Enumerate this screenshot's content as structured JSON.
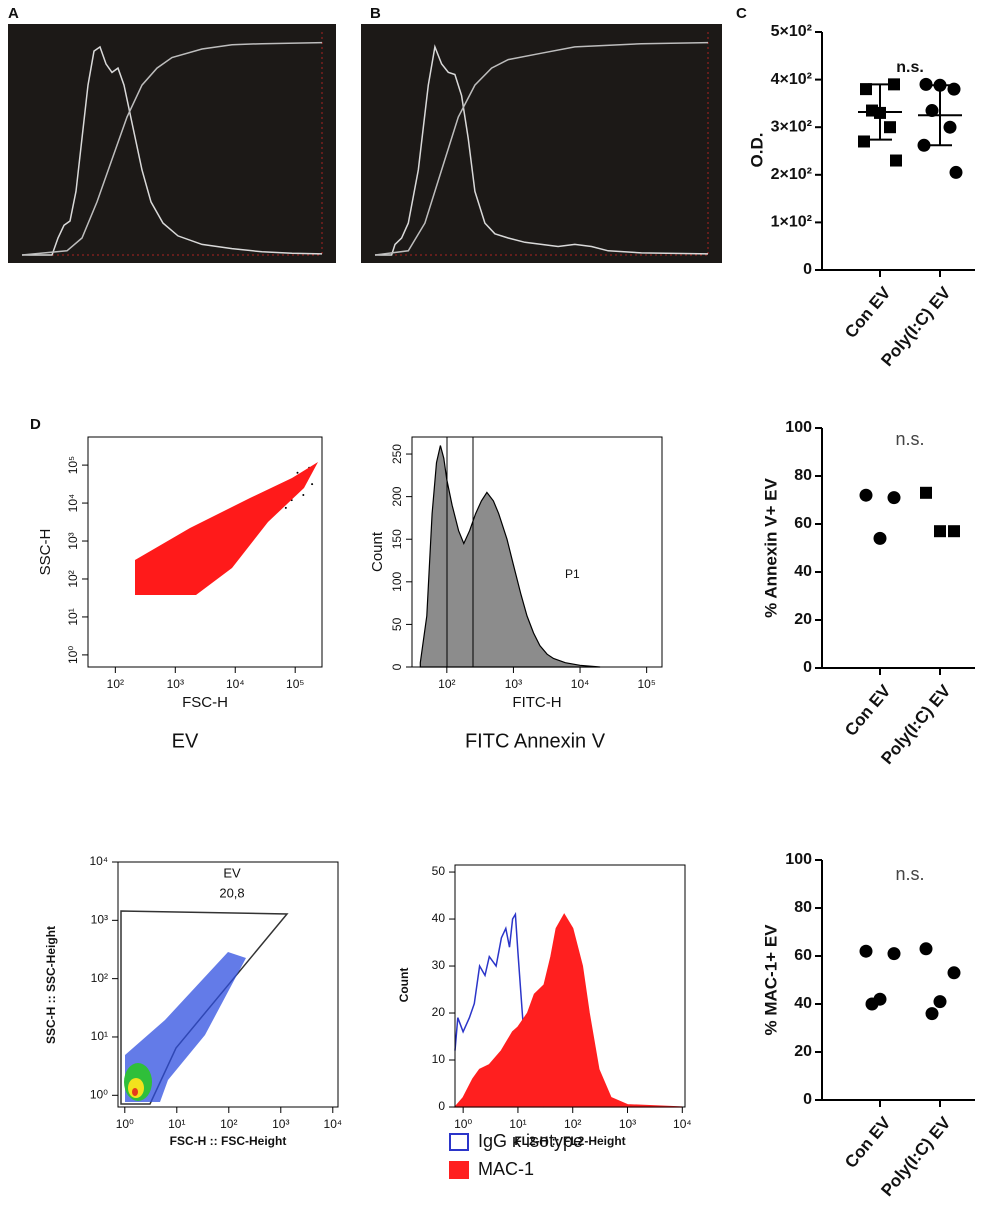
{
  "figure": {
    "labels": [
      "A",
      "B",
      "C",
      "D"
    ],
    "captions": [
      "EV",
      "FITC Annexin V"
    ]
  },
  "chart_data": [
    {
      "type": "line",
      "xlim": [
        0,
        1000
      ],
      "ylim": [
        0,
        105
      ],
      "series": [
        {
          "color": "#d9d9d9",
          "x": [
            0,
            100,
            120,
            140,
            160,
            180,
            200,
            220,
            240,
            260,
            280,
            300,
            320,
            340,
            370,
            400,
            430,
            470,
            520,
            600,
            700,
            800,
            900,
            1000
          ],
          "values": [
            0,
            0,
            8,
            14,
            16,
            30,
            55,
            80,
            96,
            98,
            90,
            86,
            88,
            80,
            60,
            40,
            25,
            15,
            9,
            5,
            3,
            1.5,
            0.8,
            0.5
          ]
        },
        {
          "color": "#bdbdbd",
          "x": [
            0,
            150,
            200,
            250,
            300,
            350,
            400,
            450,
            500,
            600,
            700,
            800,
            1000
          ],
          "values": [
            0,
            2,
            8,
            25,
            45,
            65,
            80,
            88,
            93,
            97,
            99,
            99.5,
            100
          ]
        }
      ]
    },
    {
      "type": "line",
      "xlim": [
        0,
        1000
      ],
      "ylim": [
        0,
        105
      ],
      "series": [
        {
          "color": "#d9d9d9",
          "x": [
            0,
            50,
            60,
            80,
            100,
            130,
            160,
            180,
            200,
            220,
            240,
            260,
            280,
            300,
            330,
            360,
            400,
            450,
            500,
            550,
            600,
            650,
            700,
            800,
            1000
          ],
          "values": [
            0,
            0,
            5,
            8,
            15,
            40,
            80,
            98,
            90,
            86,
            85,
            75,
            55,
            30,
            15,
            10,
            8,
            6,
            5,
            4,
            5,
            4,
            2,
            1,
            0.5
          ]
        },
        {
          "color": "#bdbdbd",
          "x": [
            0,
            100,
            150,
            200,
            250,
            300,
            350,
            400,
            500,
            600,
            800,
            1000
          ],
          "values": [
            0,
            2,
            15,
            40,
            65,
            80,
            88,
            92,
            95,
            98,
            99.5,
            100
          ]
        }
      ]
    },
    {
      "type": "dotplot",
      "ylabel": "O.D.",
      "annotation": "n.s.",
      "categories": [
        "Con EV",
        "Poly(I:C) EV"
      ],
      "markers": [
        "square",
        "circle"
      ],
      "color": "#000000",
      "points": [
        [
          380,
          390,
          330,
          335,
          300,
          270,
          230
        ],
        [
          390,
          380,
          388,
          335,
          300,
          262,
          205
        ]
      ],
      "mean": [
        332,
        325
      ],
      "sd": [
        58,
        63
      ],
      "ylim": [
        0,
        500
      ],
      "yticks": [
        0,
        {
          "value": 100,
          "label": "1×10²"
        },
        {
          "value": 200,
          "label": "2×10²"
        },
        {
          "value": 300,
          "label": "3×10²"
        },
        {
          "value": 400,
          "label": "4×10²"
        },
        {
          "value": 500,
          "label": "5×10²"
        }
      ]
    },
    {
      "type": "density",
      "xlabel": "FSC-H",
      "ylabel": "SSC-H",
      "xscale": "log",
      "yscale": "log",
      "color": "#ff1a1a",
      "xlim": [
        35,
        280000
      ],
      "ylim": [
        0.48,
        550000
      ],
      "xticks": [
        {
          "value": 100,
          "label": "10²"
        },
        {
          "value": 1000,
          "label": "10³"
        },
        {
          "value": 10000,
          "label": "10⁴"
        },
        {
          "value": 100000,
          "label": "10⁵"
        }
      ],
      "yticks": [
        {
          "value": 1,
          "label": "10⁰"
        },
        {
          "value": 10,
          "label": "10¹"
        },
        {
          "value": 100,
          "label": "10²"
        },
        {
          "value": 1000,
          "label": "10³"
        },
        {
          "value": 10000,
          "label": "10⁴"
        },
        {
          "value": 100000,
          "label": "10⁵"
        }
      ]
    },
    {
      "type": "area",
      "xlabel": "FITC-H",
      "ylabel": "Count",
      "annotation": "P1",
      "xscale": "log",
      "xlim": [
        30,
        170000
      ],
      "ylim": [
        0,
        270
      ],
      "xticks": [
        {
          "value": 100,
          "label": "10²"
        },
        {
          "value": 1000,
          "label": "10³"
        },
        {
          "value": 10000,
          "label": "10⁴"
        },
        {
          "value": 100000,
          "label": "10⁵"
        }
      ],
      "yticks": [
        0,
        50,
        100,
        150,
        200,
        250
      ],
      "series": [
        {
          "color": "#8c8c8c",
          "filled": true,
          "x": [
            40,
            50,
            60,
            70,
            80,
            90,
            100,
            120,
            150,
            180,
            220,
            270,
            330,
            400,
            500,
            600,
            800,
            1000,
            1300,
            1600,
            2000,
            2500,
            3200,
            4000,
            6000,
            10000,
            20000
          ],
          "values": [
            5,
            60,
            180,
            240,
            260,
            245,
            220,
            190,
            160,
            145,
            160,
            180,
            195,
            205,
            195,
            180,
            150,
            120,
            85,
            60,
            40,
            25,
            15,
            10,
            5,
            2,
            0
          ]
        }
      ]
    },
    {
      "type": "dotplot",
      "ylabel": "% Annexin V+ EV",
      "annotation": "n.s.",
      "categories": [
        "Con EV",
        "Poly(I:C) EV"
      ],
      "markers": [
        "circle",
        "square"
      ],
      "color": "#000000",
      "points": [
        [
          72,
          71,
          54
        ],
        [
          73,
          57,
          57
        ]
      ],
      "ylim": [
        0,
        100
      ],
      "yticks": [
        0,
        20,
        40,
        60,
        80,
        100
      ]
    },
    {
      "type": "density",
      "xlabel": "FSC-H :: FSC-Height",
      "ylabel": "SSC-H :: SSC-Height",
      "xscale": "log",
      "yscale": "log",
      "color": "#2f4fe0",
      "annotations": [
        "EV",
        "20,8"
      ],
      "xlim": [
        0.74,
        12600
      ],
      "ylim": [
        0.63,
        10000
      ],
      "xticks": [
        {
          "value": 1,
          "label": "10⁰"
        },
        {
          "value": 10,
          "label": "10¹"
        },
        {
          "value": 100,
          "label": "10²"
        },
        {
          "value": 1000,
          "label": "10³"
        },
        {
          "value": 10000,
          "label": "10⁴"
        }
      ],
      "yticks": [
        {
          "value": 1,
          "label": "10⁰"
        },
        {
          "value": 10,
          "label": "10¹"
        },
        {
          "value": 100,
          "label": "10²"
        },
        {
          "value": 1000,
          "label": "10³"
        },
        {
          "value": 10000,
          "label": "10⁴"
        }
      ]
    },
    {
      "type": "area",
      "xlabel": "FL2-H :: FL2-Height",
      "ylabel": "Count",
      "xscale": "log",
      "xlim": [
        0.71,
        11200
      ],
      "ylim": [
        0,
        51.5
      ],
      "xticks": [
        {
          "value": 1,
          "label": "10⁰"
        },
        {
          "value": 10,
          "label": "10¹"
        },
        {
          "value": 100,
          "label": "10²"
        },
        {
          "value": 1000,
          "label": "10³"
        },
        {
          "value": 10000,
          "label": "10⁴"
        }
      ],
      "yticks": [
        0,
        10,
        20,
        30,
        40,
        50
      ],
      "series": [
        {
          "name": "IgG κ isotype",
          "color": "#2b35c9",
          "filled": false,
          "x": [
            0.71,
            0.8,
            1,
            1.3,
            1.6,
            2,
            2.5,
            3,
            4,
            5,
            6,
            7,
            8,
            9,
            10,
            12,
            14,
            17,
            20,
            30
          ],
          "values": [
            12,
            19,
            16,
            19,
            22,
            30,
            28,
            32,
            30,
            36,
            38,
            34,
            40,
            41,
            33,
            20,
            10,
            4,
            1,
            0
          ]
        },
        {
          "name": "MAC-1",
          "color": "#ff1f1f",
          "filled": true,
          "x": [
            0.71,
            1,
            1.5,
            2,
            3,
            5,
            8,
            10,
            15,
            20,
            30,
            40,
            50,
            70,
            100,
            150,
            200,
            300,
            500,
            1000,
            10000
          ],
          "values": [
            0,
            2,
            6,
            8,
            9,
            12,
            16,
            17,
            20,
            24,
            26,
            32,
            38,
            41,
            38,
            30,
            20,
            8,
            2,
            0.5,
            0
          ]
        }
      ]
    },
    {
      "type": "dotplot",
      "ylabel": "% MAC-1+ EV",
      "annotation": "n.s.",
      "categories": [
        "Con EV",
        "Poly(I:C) EV"
      ],
      "markers": [
        "circle",
        "circle"
      ],
      "color": "#000000",
      "points": [
        [
          62,
          61,
          42,
          40
        ],
        [
          63,
          53,
          41,
          36
        ]
      ],
      "ylim": [
        0,
        100
      ],
      "yticks": [
        0,
        20,
        40,
        60,
        80,
        100
      ]
    }
  ]
}
